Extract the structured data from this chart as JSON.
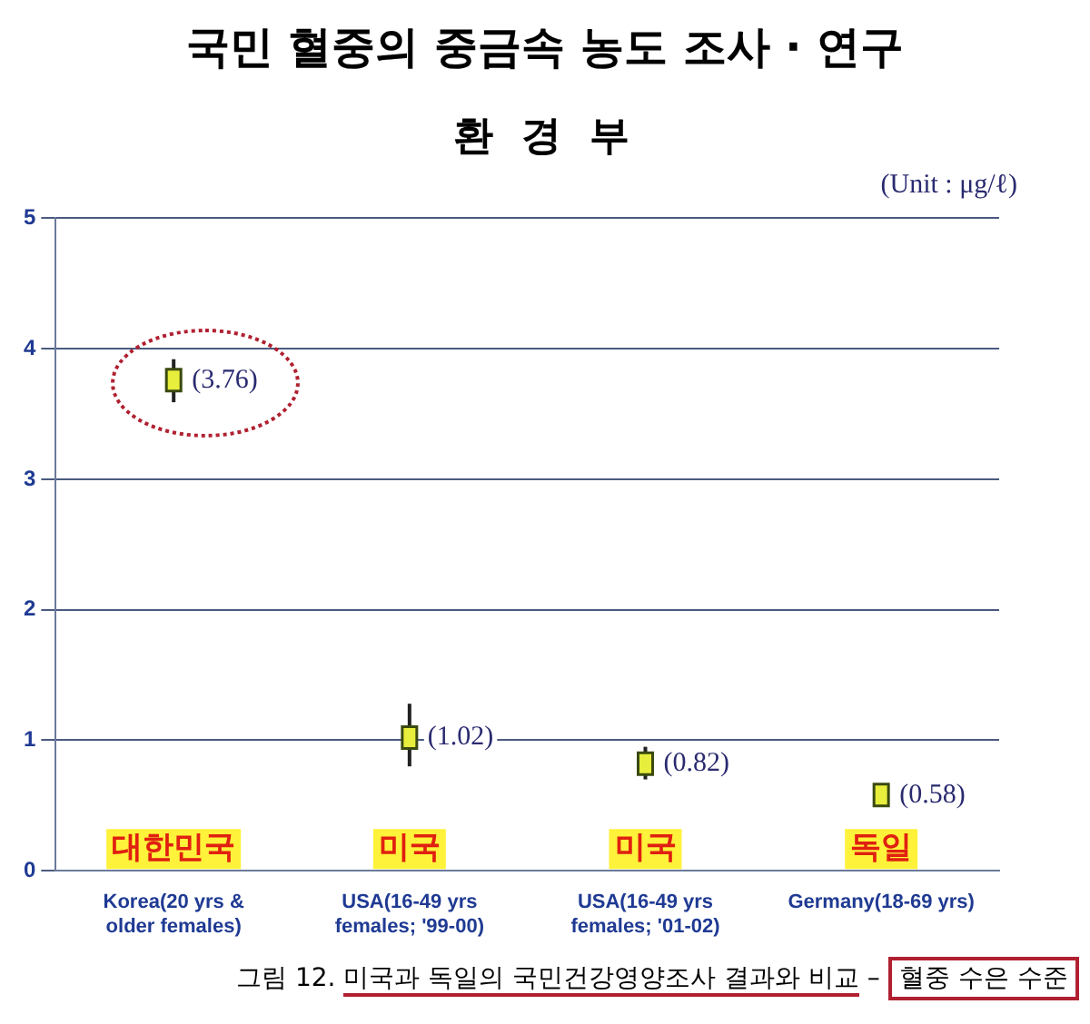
{
  "chart_data": {
    "type": "scatter",
    "title": "국민 혈중의 중금속 농도 조사 · 연구",
    "subtitle": "환 경 부",
    "categories": [
      "Korea(20 yrs & older females)",
      "USA(16-49 yrs females; '99-00)",
      "USA(16-49 yrs females; '01-02)",
      "Germany(18-69 yrs)"
    ],
    "values": [
      3.76,
      1.02,
      0.82,
      0.58
    ],
    "errors": [
      [
        3.59,
        3.92
      ],
      [
        0.8,
        1.28
      ],
      [
        0.7,
        0.95
      ],
      null
    ],
    "value_labels": [
      "(3.76)",
      "(1.02)",
      "(0.82)",
      "(0.58)"
    ],
    "color": "#e8ee3c",
    "marker": "square",
    "ylim": [
      0,
      5
    ],
    "yticks": [
      0,
      1,
      2,
      3,
      4,
      5
    ],
    "grid": "y",
    "legend": false,
    "annotations": [
      "(Unit : μg/ℓ)",
      "대한민국",
      "미국",
      "미국",
      "독일",
      "그림 12. 미국과 독일의 국민건강영양조사 결과와 비교 – 혈중 수은 수준"
    ]
  }
}
